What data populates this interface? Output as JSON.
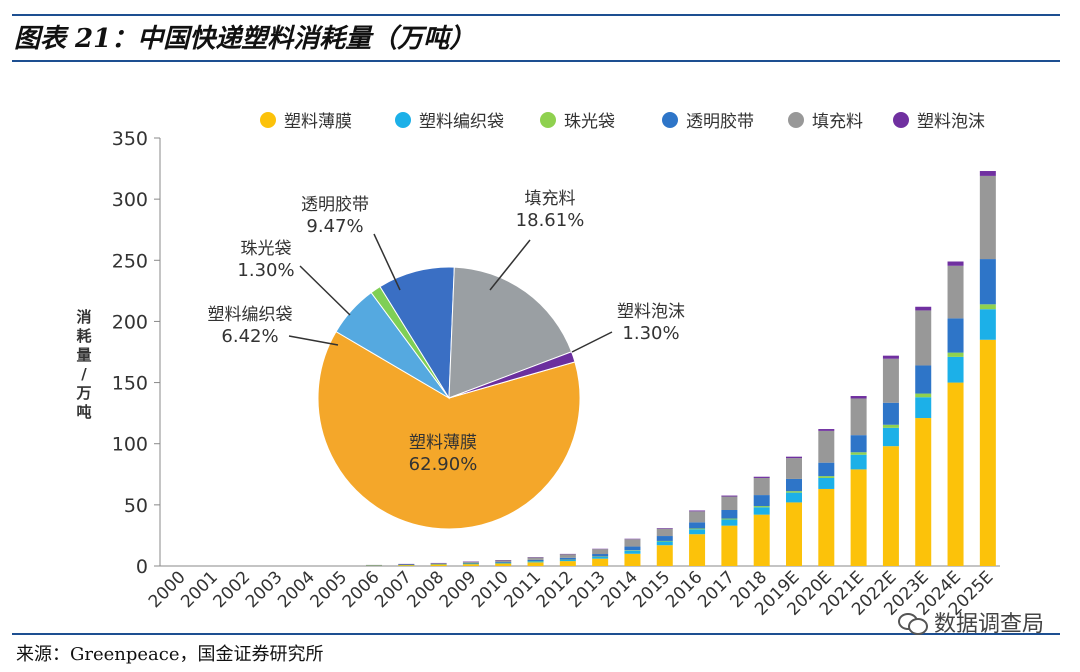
{
  "header": {
    "title": "图表 21：中国快递塑料消耗量（万吨）"
  },
  "footer": {
    "source": "来源：Greenpeace，国金证券研究所",
    "watermark": "数据调查局"
  },
  "colors": {
    "塑料薄膜": "#fcc20a",
    "塑料编织袋": "#1cb0e8",
    "珠光袋": "#8fd14f",
    "透明胶带": "#2e75c8",
    "填充料": "#989898",
    "塑料泡沫": "#7030a0",
    "pie_塑料薄膜": "#f4a72a",
    "pie_塑料编织袋": "#55a9e0",
    "pie_珠光袋": "#7fcf56",
    "pie_透明胶带": "#3a6fc4",
    "pie_填充料": "#9a9fa3",
    "pie_塑料泡沫": "#6b2f9e"
  },
  "chart_data": [
    {
      "type": "bar",
      "stacked": true,
      "ylabel": "消耗量 / 万吨",
      "ylim": [
        0,
        350
      ],
      "yticks": [
        "0",
        "50",
        "100",
        "150",
        "200",
        "250",
        "300",
        "350"
      ],
      "legend_position": "top",
      "categories": [
        "2000",
        "2001",
        "2002",
        "2003",
        "2004",
        "2005",
        "2006",
        "2007",
        "2008",
        "2009",
        "2010",
        "2011",
        "2012",
        "2013",
        "2014",
        "2015",
        "2016",
        "2017",
        "2018",
        "2019E",
        "2020E",
        "2021E",
        "2022E",
        "2023E",
        "2024E",
        "2025E"
      ],
      "series": [
        {
          "name": "塑料薄膜",
          "values": [
            0,
            0,
            0,
            0,
            0,
            0,
            0.5,
            0.8,
            1.2,
            1.5,
            2,
            3,
            4,
            6,
            10,
            17,
            26,
            33,
            42,
            52,
            63,
            79,
            98,
            121,
            150,
            185
          ]
        },
        {
          "name": "塑料编织袋",
          "values": [
            0,
            0,
            0,
            0,
            0,
            0,
            0.1,
            0.2,
            0.3,
            0.4,
            0.5,
            0.8,
            1,
            1.5,
            2.5,
            3,
            4,
            5,
            6,
            8,
            9,
            12,
            15,
            17,
            21,
            25
          ]
        },
        {
          "name": "珠光袋",
          "values": [
            0,
            0,
            0,
            0,
            0,
            0,
            0,
            0.05,
            0.05,
            0.1,
            0.1,
            0.2,
            0.2,
            0.3,
            0.4,
            0.5,
            0.7,
            0.8,
            1,
            1.2,
            1.5,
            2,
            2.5,
            3,
            3.5,
            4
          ]
        },
        {
          "name": "透明胶带",
          "values": [
            0,
            0,
            0,
            0,
            0,
            0,
            0.1,
            0.2,
            0.3,
            0.5,
            0.7,
            1,
            1.5,
            2,
            3,
            4,
            5,
            7,
            9,
            10,
            11,
            14,
            18,
            23,
            28,
            37
          ]
        },
        {
          "name": "填充料",
          "values": [
            0,
            0,
            0,
            0,
            0,
            0,
            0.2,
            0.4,
            0.6,
            1,
            1.5,
            2,
            3,
            4,
            6,
            6,
            9,
            11,
            14,
            17,
            26,
            30,
            36,
            45,
            43,
            68
          ]
        },
        {
          "name": "塑料泡沫",
          "values": [
            0,
            0,
            0,
            0,
            0,
            0,
            0,
            0.05,
            0.05,
            0.1,
            0.1,
            0.2,
            0.2,
            0.3,
            0.4,
            0.5,
            0.7,
            0.8,
            1,
            1.2,
            1.5,
            2,
            2.5,
            3,
            3.5,
            4
          ]
        }
      ]
    },
    {
      "type": "pie",
      "slices": [
        {
          "label": "塑料薄膜",
          "value": 62.9,
          "text": "62.90%"
        },
        {
          "label": "塑料编织袋",
          "value": 6.42,
          "text": "6.42%"
        },
        {
          "label": "珠光袋",
          "value": 1.3,
          "text": "1.30%"
        },
        {
          "label": "透明胶带",
          "value": 9.47,
          "text": "9.47%"
        },
        {
          "label": "填充料",
          "value": 18.61,
          "text": "18.61%"
        },
        {
          "label": "塑料泡沫",
          "value": 1.3,
          "text": "1.30%"
        }
      ]
    }
  ]
}
